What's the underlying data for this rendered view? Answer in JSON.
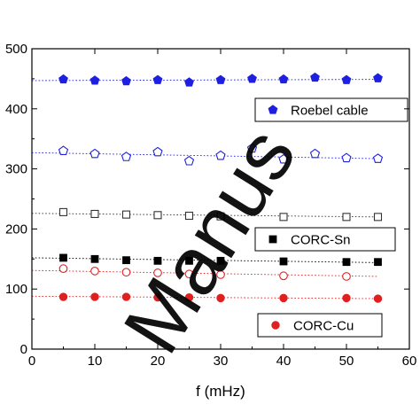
{
  "chart_data": {
    "type": "scatter",
    "xlabel": "f (mHz)",
    "ylabel": "",
    "xlim": [
      0,
      60
    ],
    "ylim": [
      0,
      500
    ],
    "x_ticks": [
      0,
      10,
      20,
      30,
      40,
      50,
      60
    ],
    "y_ticks": [
      0,
      100,
      200,
      300,
      400,
      500
    ],
    "grid": false,
    "series": [
      {
        "name": "Roebel cable",
        "marker": "pentagon",
        "filled": true,
        "color": "#1f1fe0",
        "trend_color": "#1f1fe0",
        "x": [
          5,
          10,
          15,
          20,
          25,
          30,
          35,
          40,
          45,
          50,
          55
        ],
        "y": [
          449,
          447,
          446,
          448,
          444,
          448,
          450,
          449,
          452,
          448,
          451
        ],
        "trend": [
          447,
          449
        ]
      },
      {
        "name": "",
        "marker": "pentagon",
        "filled": false,
        "color": "#1f1fe0",
        "trend_color": "#1f1fe0",
        "x": [
          5,
          10,
          15,
          20,
          25,
          30,
          35,
          40,
          45,
          50,
          55
        ],
        "y": [
          330,
          325,
          320,
          328,
          313,
          322,
          334,
          316,
          325,
          318,
          317
        ],
        "trend": [
          327,
          317
        ]
      },
      {
        "name": "",
        "marker": "square",
        "filled": false,
        "color": "#333333",
        "trend_color": "#333333",
        "x": [
          5,
          10,
          15,
          20,
          25,
          30,
          40,
          50,
          55
        ],
        "y": [
          228,
          225,
          224,
          223,
          222,
          221,
          220,
          220,
          220
        ],
        "trend": [
          226,
          220
        ]
      },
      {
        "name": "CORC-Sn",
        "marker": "square",
        "filled": true,
        "color": "#000000",
        "trend_color": "#000000",
        "x": [
          5,
          10,
          15,
          20,
          25,
          30,
          40,
          50,
          55
        ],
        "y": [
          152,
          150,
          148,
          147,
          147,
          147,
          146,
          145,
          145
        ],
        "trend": [
          152,
          144
        ]
      },
      {
        "name": "",
        "marker": "circle",
        "filled": false,
        "color": "#e02020",
        "trend_color": "#e02020",
        "x": [
          5,
          10,
          15,
          20,
          25,
          30,
          40,
          50
        ],
        "y": [
          134,
          130,
          128,
          127,
          125,
          124,
          122,
          121
        ],
        "trend": [
          131,
          121
        ]
      },
      {
        "name": "CORC-Cu",
        "marker": "circle",
        "filled": true,
        "color": "#e02020",
        "trend_color": "#e02020",
        "x": [
          5,
          10,
          15,
          20,
          25,
          30,
          40,
          50,
          55
        ],
        "y": [
          87,
          87,
          87,
          86,
          86,
          85,
          85,
          85,
          84
        ],
        "trend": [
          88,
          84
        ]
      }
    ],
    "legend_placement": "inside, right side"
  },
  "watermark": "Manus"
}
